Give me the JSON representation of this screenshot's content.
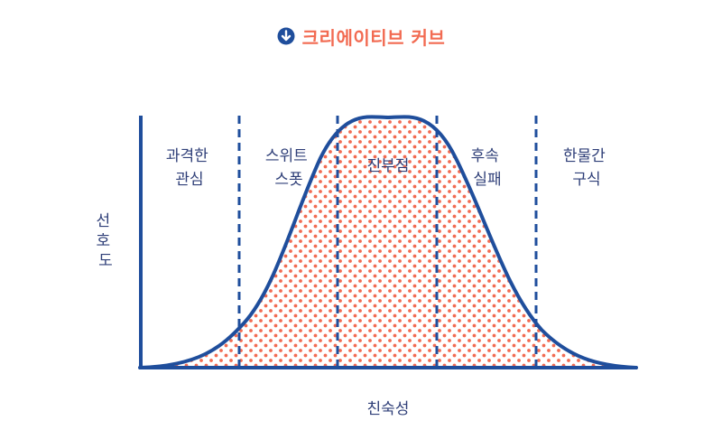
{
  "title": {
    "text": "크리에이티브 커브",
    "icon": "down-arrow-circle-icon"
  },
  "colors": {
    "accent": "#f26b52",
    "primary": "#1f4e9c",
    "text": "#2f3f78"
  },
  "y_axis_label": [
    "선",
    "호",
    "도"
  ],
  "x_axis_label": "친숙성",
  "zones": [
    {
      "lines": [
        "과격한",
        "관심"
      ]
    },
    {
      "lines": [
        "스위트",
        "스폿"
      ]
    },
    {
      "lines": [
        "진부점"
      ]
    },
    {
      "lines": [
        "후속",
        "실패"
      ]
    },
    {
      "lines": [
        "한물간",
        "구식"
      ]
    }
  ]
}
